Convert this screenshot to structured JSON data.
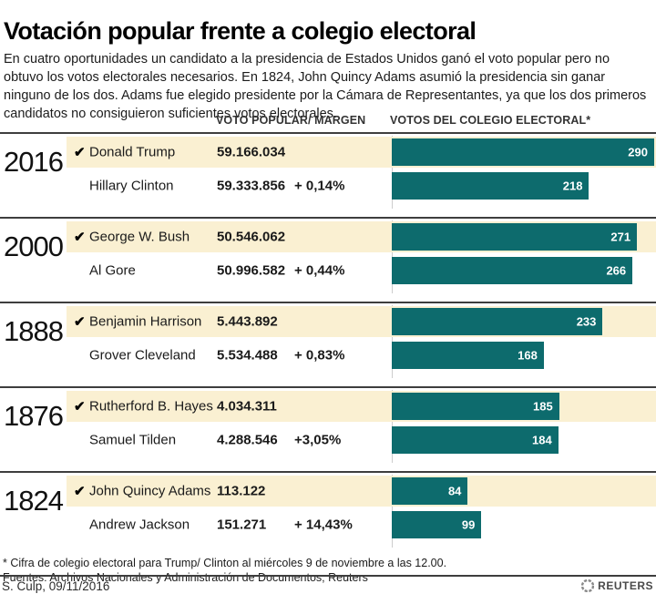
{
  "title": "Votación popular frente a colegio electoral",
  "intro": "En cuatro oportunidades un candidato a la presidencia de Estados Unidos ganó el voto popular pero no obtuvo los votos electorales necesarios. En 1824, John Quincy Adams asumió la presidencia sin ganar ninguno de los dos. Adams fue elegido presidente por la Cámara de Representantes, ya que los dos primeros candidatos no consiguieron suficientes votos electorales.",
  "columns": {
    "popular": "VOTO POPULAR/ MARGEN",
    "electoral": "VOTOS DEL COLEGIO ELECTORAL*"
  },
  "winner_check_glyph": "✔",
  "colors": {
    "bar": "#0d6b6d",
    "winner_row_bg": "#faf0d2",
    "divider": "#3e3e3e"
  },
  "chart_data": {
    "type": "bar",
    "orientation": "horizontal",
    "value_meaning": "votos del colegio electoral",
    "max": 290,
    "sections": [
      {
        "year": "2016",
        "rows": [
          {
            "winner": true,
            "candidate": "Donald Trump",
            "popular_vote": "59.166.034",
            "margin": "",
            "electoral": 290
          },
          {
            "winner": false,
            "candidate": "Hillary Clinton",
            "popular_vote": "59.333.856",
            "margin": "+ 0,14%",
            "electoral": 218
          }
        ]
      },
      {
        "year": "2000",
        "rows": [
          {
            "winner": true,
            "candidate": "George W. Bush",
            "popular_vote": "50.546.062",
            "margin": "",
            "electoral": 271
          },
          {
            "winner": false,
            "candidate": "Al Gore",
            "popular_vote": "50.996.582",
            "margin": "+ 0,44%",
            "electoral": 266
          }
        ]
      },
      {
        "year": "1888",
        "rows": [
          {
            "winner": true,
            "candidate": "Benjamin Harrison",
            "popular_vote": "5.443.892",
            "margin": "",
            "electoral": 233
          },
          {
            "winner": false,
            "candidate": "Grover Cleveland",
            "popular_vote": "5.534.488",
            "margin": "+ 0,83%",
            "electoral": 168
          }
        ]
      },
      {
        "year": "1876",
        "rows": [
          {
            "winner": true,
            "candidate": "Rutherford B. Hayes",
            "popular_vote": "4.034.311",
            "margin": "",
            "electoral": 185
          },
          {
            "winner": false,
            "candidate": "Samuel Tilden",
            "popular_vote": "4.288.546",
            "margin": "+3,05%",
            "electoral": 184
          }
        ]
      },
      {
        "year": "1824",
        "rows": [
          {
            "winner": true,
            "candidate": "John Quincy Adams",
            "popular_vote": "113.122",
            "margin": "",
            "electoral": 84
          },
          {
            "winner": false,
            "candidate": "Andrew Jackson",
            "popular_vote": "151.271",
            "margin": "+ 14,43%",
            "electoral": 99
          }
        ]
      }
    ]
  },
  "footnote": "* Cifra de colegio electoral para Trump/ Clinton al miércoles 9 de noviembre a las 12.00.",
  "sources": "Fuentes:  Archivos Nacionales y Administración de Documentos; Reuters",
  "credit": "S. Culp, 09/11/2016",
  "logo_text": "REUTERS"
}
